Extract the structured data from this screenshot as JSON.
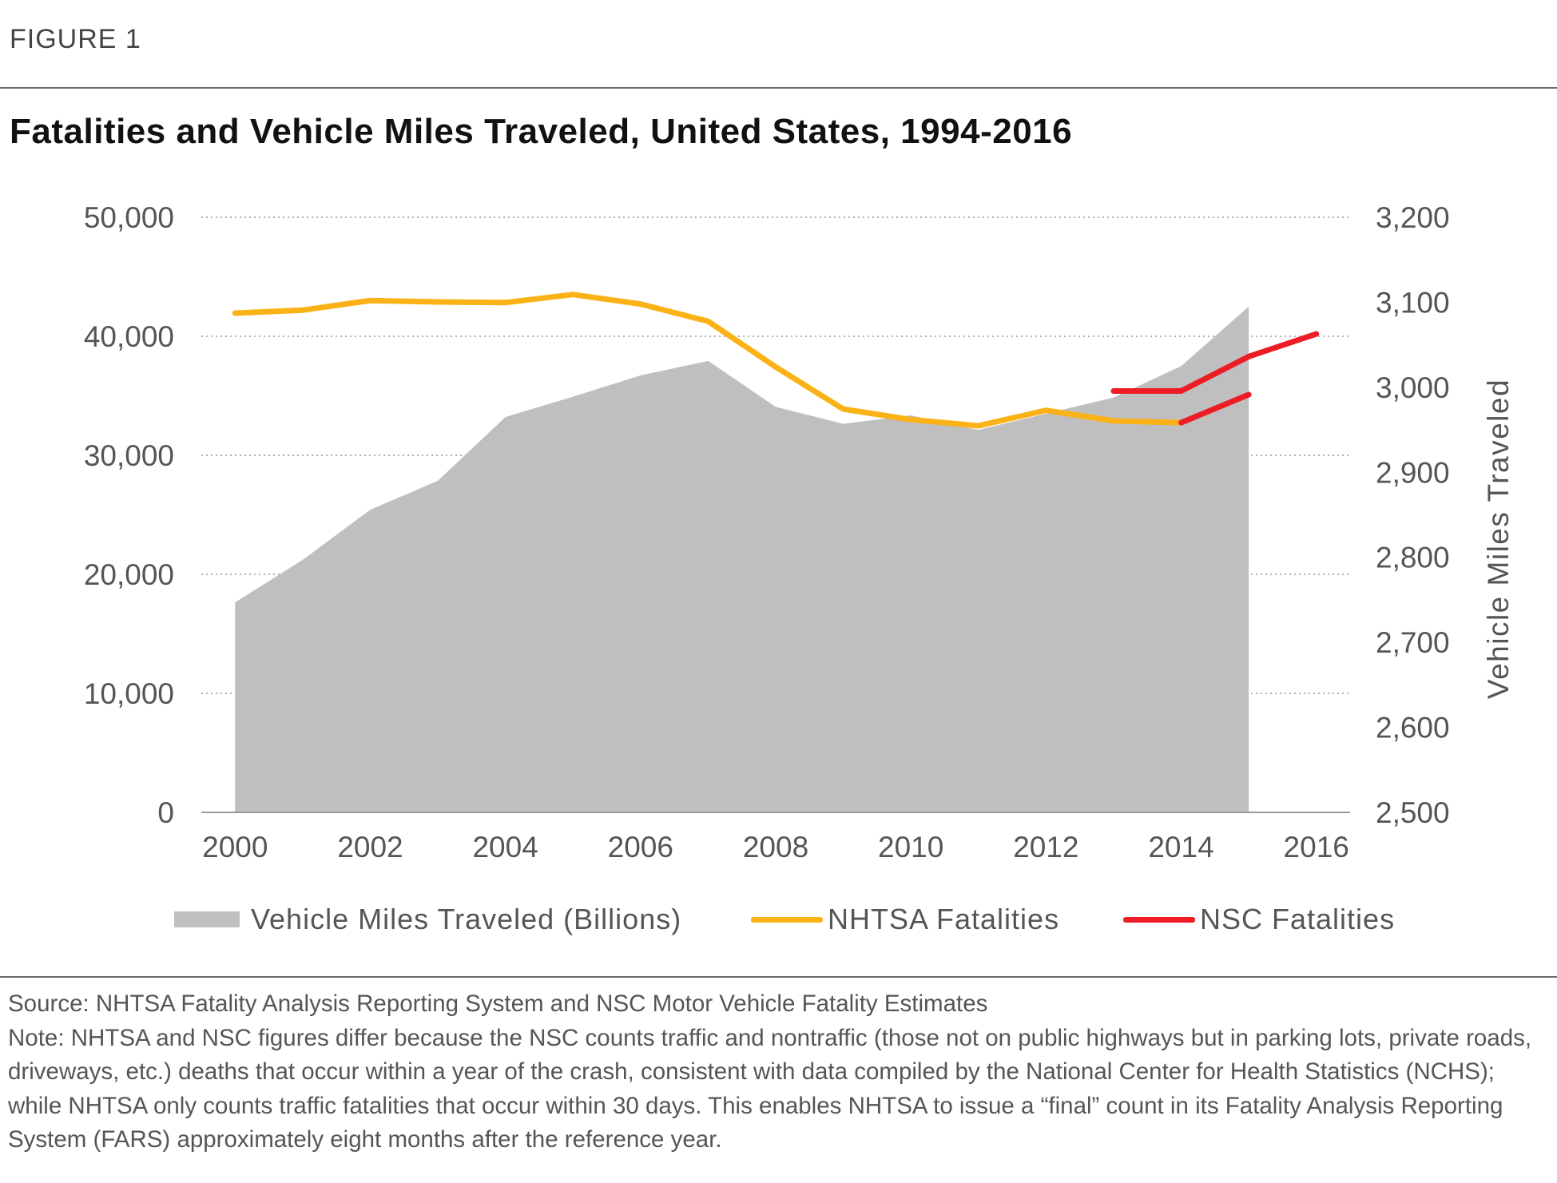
{
  "figure_label": "FIGURE 1",
  "title": "Fatalities and Vehicle Miles Traveled, United States, 1994-2016",
  "colors": {
    "vmt_area": "#bfbfbf",
    "nhtsa_line": "#fbb216",
    "nsc_line": "#ee1c25",
    "gridline": "#b0b0b0"
  },
  "legend": {
    "vmt": "Vehicle Miles Traveled (Billions)",
    "nhtsa": "NHTSA Fatalities",
    "nsc": "NSC Fatalities"
  },
  "notes": {
    "source": "Source: NHTSA Fatality Analysis Reporting System and NSC Motor Vehicle Fatality Estimates",
    "note": "Note: NHTSA and NSC figures differ because the NSC counts traffic and nontraffic (those not on public highways but in parking lots, private roads, driveways, etc.) deaths that occur within a year of the crash, consistent with data compiled by the National Center for Health Statistics (NCHS); while NHTSA only counts traffic fatalities that occur within 30 days. This enables NHTSA to issue a “final” count in its Fatality Analysis Reporting System (FARS) approximately eight months after the reference year."
  },
  "chart_data": {
    "type": "line",
    "title": "Fatalities and Vehicle Miles Traveled, United States, 1994-2016",
    "x_tick_labels": [
      "2000",
      "2002",
      "2004",
      "2006",
      "2008",
      "2010",
      "2012",
      "2014",
      "2016"
    ],
    "xlim": [
      1999.5,
      2016.5
    ],
    "y_left": {
      "ylim": [
        0,
        50000
      ],
      "ticks": [
        0,
        10000,
        20000,
        30000,
        40000,
        50000
      ],
      "tick_labels": [
        "0",
        "10,000",
        "20,000",
        "30,000",
        "40,000",
        "50,000"
      ]
    },
    "y_right": {
      "label": "Vehicle Miles Traveled",
      "ylim": [
        2500,
        3200
      ],
      "ticks": [
        2500,
        2600,
        2700,
        2800,
        2900,
        3000,
        3100,
        3200
      ],
      "tick_labels": [
        "2,500",
        "2,600",
        "2,700",
        "2,800",
        "2,900",
        "3,000",
        "3,100",
        "3,200"
      ]
    },
    "grid": true,
    "legend_position": "bottom",
    "series": [
      {
        "name": "Vehicle Miles Traveled (Billions)",
        "kind": "area",
        "axis": "right",
        "x": [
          2000,
          2001,
          2002,
          2003,
          2004,
          2005,
          2006,
          2007,
          2008,
          2009,
          2010,
          2011,
          2012,
          2013,
          2014,
          2015
        ],
        "values": [
          2747,
          2797,
          2856,
          2890,
          2965,
          2989,
          3014,
          3031,
          2977,
          2957,
          2967,
          2950,
          2969,
          2988,
          3025,
          3095
        ]
      },
      {
        "name": "NHTSA Fatalities",
        "kind": "line",
        "axis": "left",
        "x": [
          2000,
          2001,
          2002,
          2003,
          2004,
          2005,
          2006,
          2007,
          2008,
          2009,
          2010,
          2011,
          2012,
          2013,
          2014
        ],
        "values": [
          41945,
          42196,
          43005,
          42884,
          42836,
          43510,
          42708,
          41259,
          37423,
          33883,
          32999,
          32479,
          33782,
          32894,
          32744
        ]
      },
      {
        "name": "NSC Fatalities",
        "kind": "line",
        "axis": "left",
        "segments": [
          {
            "x": [
              2013,
              2014,
              2015,
              2016
            ],
            "values": [
              35400,
              35400,
              38300,
              40200
            ]
          },
          {
            "x": [
              2014,
              2015
            ],
            "values": [
              32744,
              35100
            ]
          }
        ]
      }
    ]
  }
}
